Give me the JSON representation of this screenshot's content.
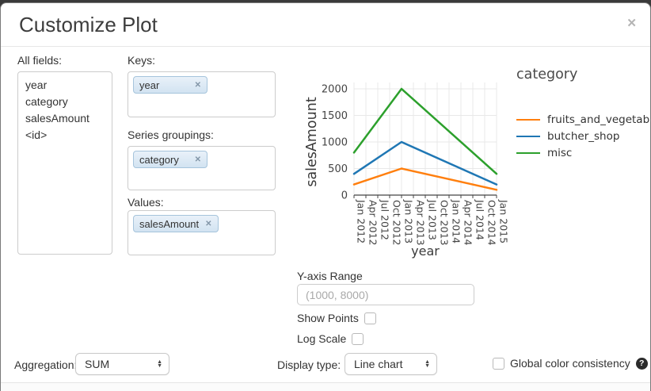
{
  "dialog": {
    "title": "Customize Plot",
    "close_label": "✕"
  },
  "ui": {
    "tag_remove_glyph": "✕",
    "select_arrow_up": "▲",
    "select_arrow_down": "▼"
  },
  "fields_panel": {
    "label": "All fields:",
    "items": [
      "year",
      "category",
      "salesAmount",
      "<id>"
    ]
  },
  "droppables": {
    "keys": {
      "label": "Keys:",
      "tags": [
        "year"
      ]
    },
    "series_groupings": {
      "label": "Series groupings:",
      "tags": [
        "category"
      ]
    },
    "values": {
      "label": "Values:",
      "tags": [
        "salesAmount"
      ]
    }
  },
  "chart_data": {
    "type": "line",
    "title": "",
    "xlabel": "year",
    "ylabel": "salesAmount",
    "legend_title": "category",
    "legend_position": "right",
    "grid": true,
    "ylim": [
      0,
      2000
    ],
    "y_ticks": [
      0,
      500,
      1000,
      1500,
      2000
    ],
    "x_ticks": [
      "Jan 2012",
      "Apr 2012",
      "Jul 2012",
      "Oct 2012",
      "Jan 2013",
      "Apr 2013",
      "Jul 2013",
      "Oct 2013",
      "Jan 2014",
      "Apr 2014",
      "Jul 2014",
      "Oct 2014",
      "Jan 2015"
    ],
    "series": [
      {
        "name": "fruits_and_vegetables",
        "color": "#ff7f0e",
        "points": [
          [
            "Jan 2012",
            200
          ],
          [
            "Jan 2013",
            500
          ],
          [
            "Jan 2015",
            100
          ]
        ]
      },
      {
        "name": "butcher_shop",
        "color": "#1f77b4",
        "points": [
          [
            "Jan 2012",
            400
          ],
          [
            "Jan 2013",
            1000
          ],
          [
            "Jan 2015",
            200
          ]
        ]
      },
      {
        "name": "misc",
        "color": "#2ca02c",
        "points": [
          [
            "Jan 2012",
            800
          ],
          [
            "Jan 2013",
            2000
          ],
          [
            "Jan 2015",
            400
          ]
        ]
      }
    ]
  },
  "y_axis_range": {
    "label": "Y-axis Range",
    "placeholder": "(1000, 8000)",
    "value": ""
  },
  "show_points": {
    "label": "Show Points",
    "checked": false
  },
  "log_scale": {
    "label": "Log Scale",
    "checked": false
  },
  "aggregation": {
    "label": "Aggregation:",
    "value": "SUM"
  },
  "display_type": {
    "label": "Display type:",
    "value": "Line chart"
  },
  "global_color_consistency": {
    "label": "Global color consistency",
    "checked": false,
    "help_glyph": "?"
  }
}
